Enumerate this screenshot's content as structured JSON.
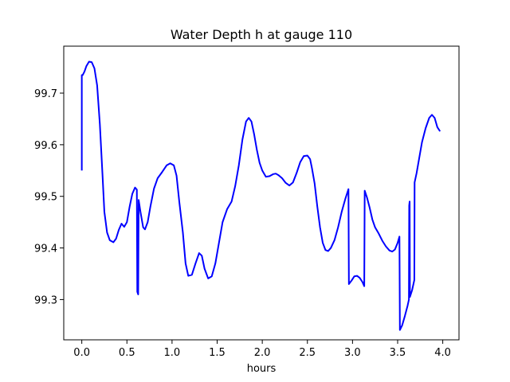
{
  "chart_data": {
    "type": "line",
    "title": "Water Depth h at gauge 110",
    "xlabel": "hours",
    "ylabel": "",
    "xlim": [
      -0.2,
      4.18
    ],
    "ylim": [
      99.222,
      99.791
    ],
    "xticks": [
      0.0,
      0.5,
      1.0,
      1.5,
      2.0,
      2.5,
      3.0,
      3.5,
      4.0
    ],
    "xtick_labels": [
      "0.0",
      "0.5",
      "1.0",
      "1.5",
      "2.0",
      "2.5",
      "3.0",
      "3.5",
      "4.0"
    ],
    "yticks": [
      99.3,
      99.4,
      99.5,
      99.6,
      99.7
    ],
    "ytick_labels": [
      "99.3",
      "99.4",
      "99.5",
      "99.6",
      "99.7"
    ],
    "grid": false,
    "series": [
      {
        "color": "#0000ff",
        "points": [
          [
            0.0,
            99.55
          ],
          [
            0.0,
            99.735
          ],
          [
            0.01,
            99.735
          ],
          [
            0.03,
            99.742
          ],
          [
            0.05,
            99.752
          ],
          [
            0.08,
            99.761
          ],
          [
            0.11,
            99.76
          ],
          [
            0.14,
            99.748
          ],
          [
            0.17,
            99.715
          ],
          [
            0.2,
            99.64
          ],
          [
            0.23,
            99.54
          ],
          [
            0.25,
            99.47
          ],
          [
            0.28,
            99.43
          ],
          [
            0.31,
            99.415
          ],
          [
            0.35,
            99.411
          ],
          [
            0.38,
            99.418
          ],
          [
            0.41,
            99.435
          ],
          [
            0.44,
            99.447
          ],
          [
            0.47,
            99.441
          ],
          [
            0.5,
            99.45
          ],
          [
            0.53,
            99.48
          ],
          [
            0.56,
            99.505
          ],
          [
            0.59,
            99.517
          ],
          [
            0.61,
            99.513
          ],
          [
            0.615,
            99.315
          ],
          [
            0.625,
            99.31
          ],
          [
            0.63,
            99.493
          ],
          [
            0.65,
            99.47
          ],
          [
            0.68,
            99.44
          ],
          [
            0.7,
            99.436
          ],
          [
            0.73,
            99.45
          ],
          [
            0.76,
            99.48
          ],
          [
            0.8,
            99.515
          ],
          [
            0.84,
            99.535
          ],
          [
            0.89,
            99.547
          ],
          [
            0.94,
            99.56
          ],
          [
            0.98,
            99.564
          ],
          [
            1.02,
            99.56
          ],
          [
            1.05,
            99.54
          ],
          [
            1.08,
            99.49
          ],
          [
            1.12,
            99.43
          ],
          [
            1.15,
            99.37
          ],
          [
            1.18,
            99.346
          ],
          [
            1.22,
            99.348
          ],
          [
            1.26,
            99.37
          ],
          [
            1.3,
            99.39
          ],
          [
            1.33,
            99.385
          ],
          [
            1.36,
            99.36
          ],
          [
            1.4,
            99.341
          ],
          [
            1.44,
            99.345
          ],
          [
            1.48,
            99.37
          ],
          [
            1.52,
            99.41
          ],
          [
            1.56,
            99.45
          ],
          [
            1.61,
            99.475
          ],
          [
            1.66,
            99.49
          ],
          [
            1.7,
            99.52
          ],
          [
            1.74,
            99.56
          ],
          [
            1.78,
            99.61
          ],
          [
            1.82,
            99.645
          ],
          [
            1.85,
            99.652
          ],
          [
            1.88,
            99.645
          ],
          [
            1.91,
            99.62
          ],
          [
            1.94,
            99.59
          ],
          [
            1.97,
            99.565
          ],
          [
            2.0,
            99.55
          ],
          [
            2.04,
            99.538
          ],
          [
            2.08,
            99.539
          ],
          [
            2.12,
            99.543
          ],
          [
            2.15,
            99.544
          ],
          [
            2.18,
            99.541
          ],
          [
            2.22,
            99.535
          ],
          [
            2.26,
            99.526
          ],
          [
            2.3,
            99.521
          ],
          [
            2.34,
            99.527
          ],
          [
            2.38,
            99.545
          ],
          [
            2.42,
            99.566
          ],
          [
            2.46,
            99.578
          ],
          [
            2.5,
            99.579
          ],
          [
            2.53,
            99.572
          ],
          [
            2.55,
            99.555
          ],
          [
            2.58,
            99.525
          ],
          [
            2.61,
            99.48
          ],
          [
            2.64,
            99.44
          ],
          [
            2.67,
            99.41
          ],
          [
            2.7,
            99.396
          ],
          [
            2.73,
            99.394
          ],
          [
            2.76,
            99.4
          ],
          [
            2.8,
            99.415
          ],
          [
            2.84,
            99.44
          ],
          [
            2.88,
            99.47
          ],
          [
            2.92,
            99.495
          ],
          [
            2.955,
            99.514
          ],
          [
            2.96,
            99.33
          ],
          [
            2.99,
            99.337
          ],
          [
            3.02,
            99.345
          ],
          [
            3.05,
            99.346
          ],
          [
            3.08,
            99.342
          ],
          [
            3.11,
            99.334
          ],
          [
            3.13,
            99.326
          ],
          [
            3.135,
            99.511
          ],
          [
            3.16,
            99.498
          ],
          [
            3.19,
            99.478
          ],
          [
            3.22,
            99.455
          ],
          [
            3.25,
            99.44
          ],
          [
            3.29,
            99.428
          ],
          [
            3.33,
            99.414
          ],
          [
            3.37,
            99.403
          ],
          [
            3.41,
            99.395
          ],
          [
            3.44,
            99.393
          ],
          [
            3.47,
            99.397
          ],
          [
            3.5,
            99.41
          ],
          [
            3.52,
            99.422
          ],
          [
            3.525,
            99.241
          ],
          [
            3.55,
            99.25
          ],
          [
            3.58,
            99.268
          ],
          [
            3.61,
            99.288
          ],
          [
            3.625,
            99.3
          ],
          [
            3.628,
            99.482
          ],
          [
            3.633,
            99.49
          ],
          [
            3.636,
            99.305
          ],
          [
            3.66,
            99.318
          ],
          [
            3.685,
            99.338
          ],
          [
            3.688,
            99.527
          ],
          [
            3.71,
            99.545
          ],
          [
            3.74,
            99.575
          ],
          [
            3.77,
            99.605
          ],
          [
            3.81,
            99.632
          ],
          [
            3.85,
            99.652
          ],
          [
            3.88,
            99.658
          ],
          [
            3.91,
            99.652
          ],
          [
            3.94,
            99.634
          ],
          [
            3.97,
            99.626
          ]
        ]
      }
    ]
  }
}
